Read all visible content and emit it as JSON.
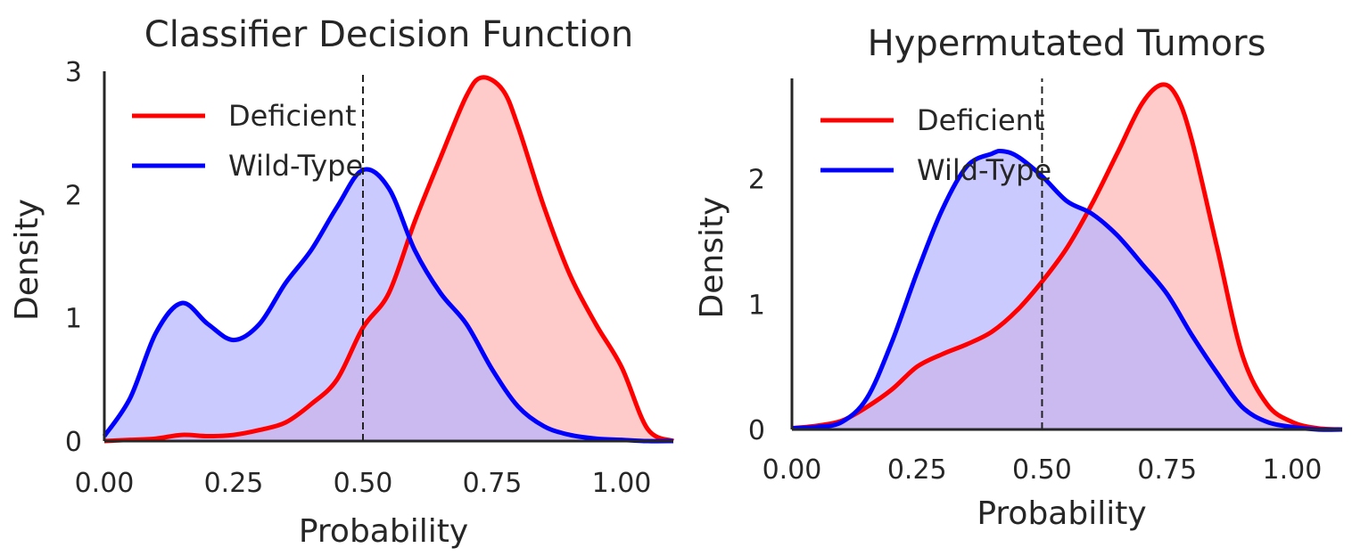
{
  "chart_data": [
    {
      "type": "area",
      "title": "Classifier Decision Function",
      "xlabel": "Probability",
      "ylabel": "Density",
      "xlim": [
        0.0,
        1.1
      ],
      "ylim": [
        0,
        3.0
      ],
      "xticks": [
        "0.00",
        "0.25",
        "0.50",
        "0.75",
        "1.00"
      ],
      "yticks": [
        "0",
        "1",
        "2",
        "3"
      ],
      "threshold": 0.5,
      "legend_position": "top-left",
      "series": [
        {
          "name": "Deficient",
          "color": "#ff0000",
          "fill": "#ffb3b3",
          "x": [
            0.0,
            0.05,
            0.1,
            0.15,
            0.2,
            0.25,
            0.3,
            0.35,
            0.4,
            0.45,
            0.5,
            0.55,
            0.6,
            0.65,
            0.7,
            0.73,
            0.77,
            0.8,
            0.85,
            0.9,
            0.95,
            1.0,
            1.05,
            1.1
          ],
          "y": [
            0.0,
            0.01,
            0.02,
            0.05,
            0.04,
            0.05,
            0.09,
            0.15,
            0.3,
            0.5,
            0.92,
            1.2,
            1.78,
            2.3,
            2.8,
            2.95,
            2.85,
            2.55,
            1.9,
            1.35,
            0.95,
            0.6,
            0.1,
            0.0
          ]
        },
        {
          "name": "Wild-Type",
          "color": "#0000ff",
          "fill": "#b3b3ff",
          "x": [
            0.0,
            0.05,
            0.1,
            0.15,
            0.2,
            0.25,
            0.3,
            0.35,
            0.4,
            0.45,
            0.5,
            0.55,
            0.6,
            0.65,
            0.7,
            0.75,
            0.8,
            0.85,
            0.9,
            0.95,
            1.0,
            1.05,
            1.1
          ],
          "y": [
            0.04,
            0.35,
            0.88,
            1.12,
            0.95,
            0.82,
            0.95,
            1.28,
            1.55,
            1.9,
            2.2,
            2.05,
            1.55,
            1.2,
            0.95,
            0.58,
            0.28,
            0.12,
            0.05,
            0.02,
            0.01,
            0.0,
            0.0
          ]
        }
      ]
    },
    {
      "type": "area",
      "title": "Hypermutated Tumors",
      "xlabel": "Probability",
      "ylabel": "Density",
      "xlim": [
        0.0,
        1.1
      ],
      "ylim": [
        0,
        2.8
      ],
      "xticks": [
        "0.00",
        "0.25",
        "0.50",
        "0.75",
        "1.00"
      ],
      "yticks": [
        "0",
        "1",
        "2"
      ],
      "threshold": 0.5,
      "legend_position": "top-left",
      "series": [
        {
          "name": "Deficient",
          "color": "#ff0000",
          "fill": "#ffb3b3",
          "x": [
            0.0,
            0.05,
            0.1,
            0.15,
            0.2,
            0.25,
            0.3,
            0.35,
            0.4,
            0.45,
            0.5,
            0.55,
            0.6,
            0.65,
            0.7,
            0.74,
            0.77,
            0.8,
            0.85,
            0.9,
            0.95,
            1.0,
            1.05,
            1.1
          ],
          "y": [
            0.01,
            0.03,
            0.07,
            0.18,
            0.32,
            0.5,
            0.6,
            0.68,
            0.78,
            0.95,
            1.18,
            1.45,
            1.8,
            2.2,
            2.6,
            2.75,
            2.65,
            2.3,
            1.45,
            0.6,
            0.2,
            0.06,
            0.01,
            0.0
          ]
        },
        {
          "name": "Wild-Type",
          "color": "#0000ff",
          "fill": "#b3b3ff",
          "x": [
            0.0,
            0.05,
            0.1,
            0.15,
            0.2,
            0.25,
            0.3,
            0.35,
            0.4,
            0.42,
            0.45,
            0.5,
            0.55,
            0.6,
            0.65,
            0.7,
            0.75,
            0.8,
            0.85,
            0.9,
            0.95,
            1.0,
            1.05,
            1.1
          ],
          "y": [
            0.01,
            0.02,
            0.06,
            0.25,
            0.7,
            1.25,
            1.75,
            2.1,
            2.2,
            2.22,
            2.18,
            2.02,
            1.82,
            1.72,
            1.55,
            1.32,
            1.08,
            0.75,
            0.45,
            0.18,
            0.06,
            0.02,
            0.0,
            0.0
          ]
        }
      ]
    }
  ]
}
